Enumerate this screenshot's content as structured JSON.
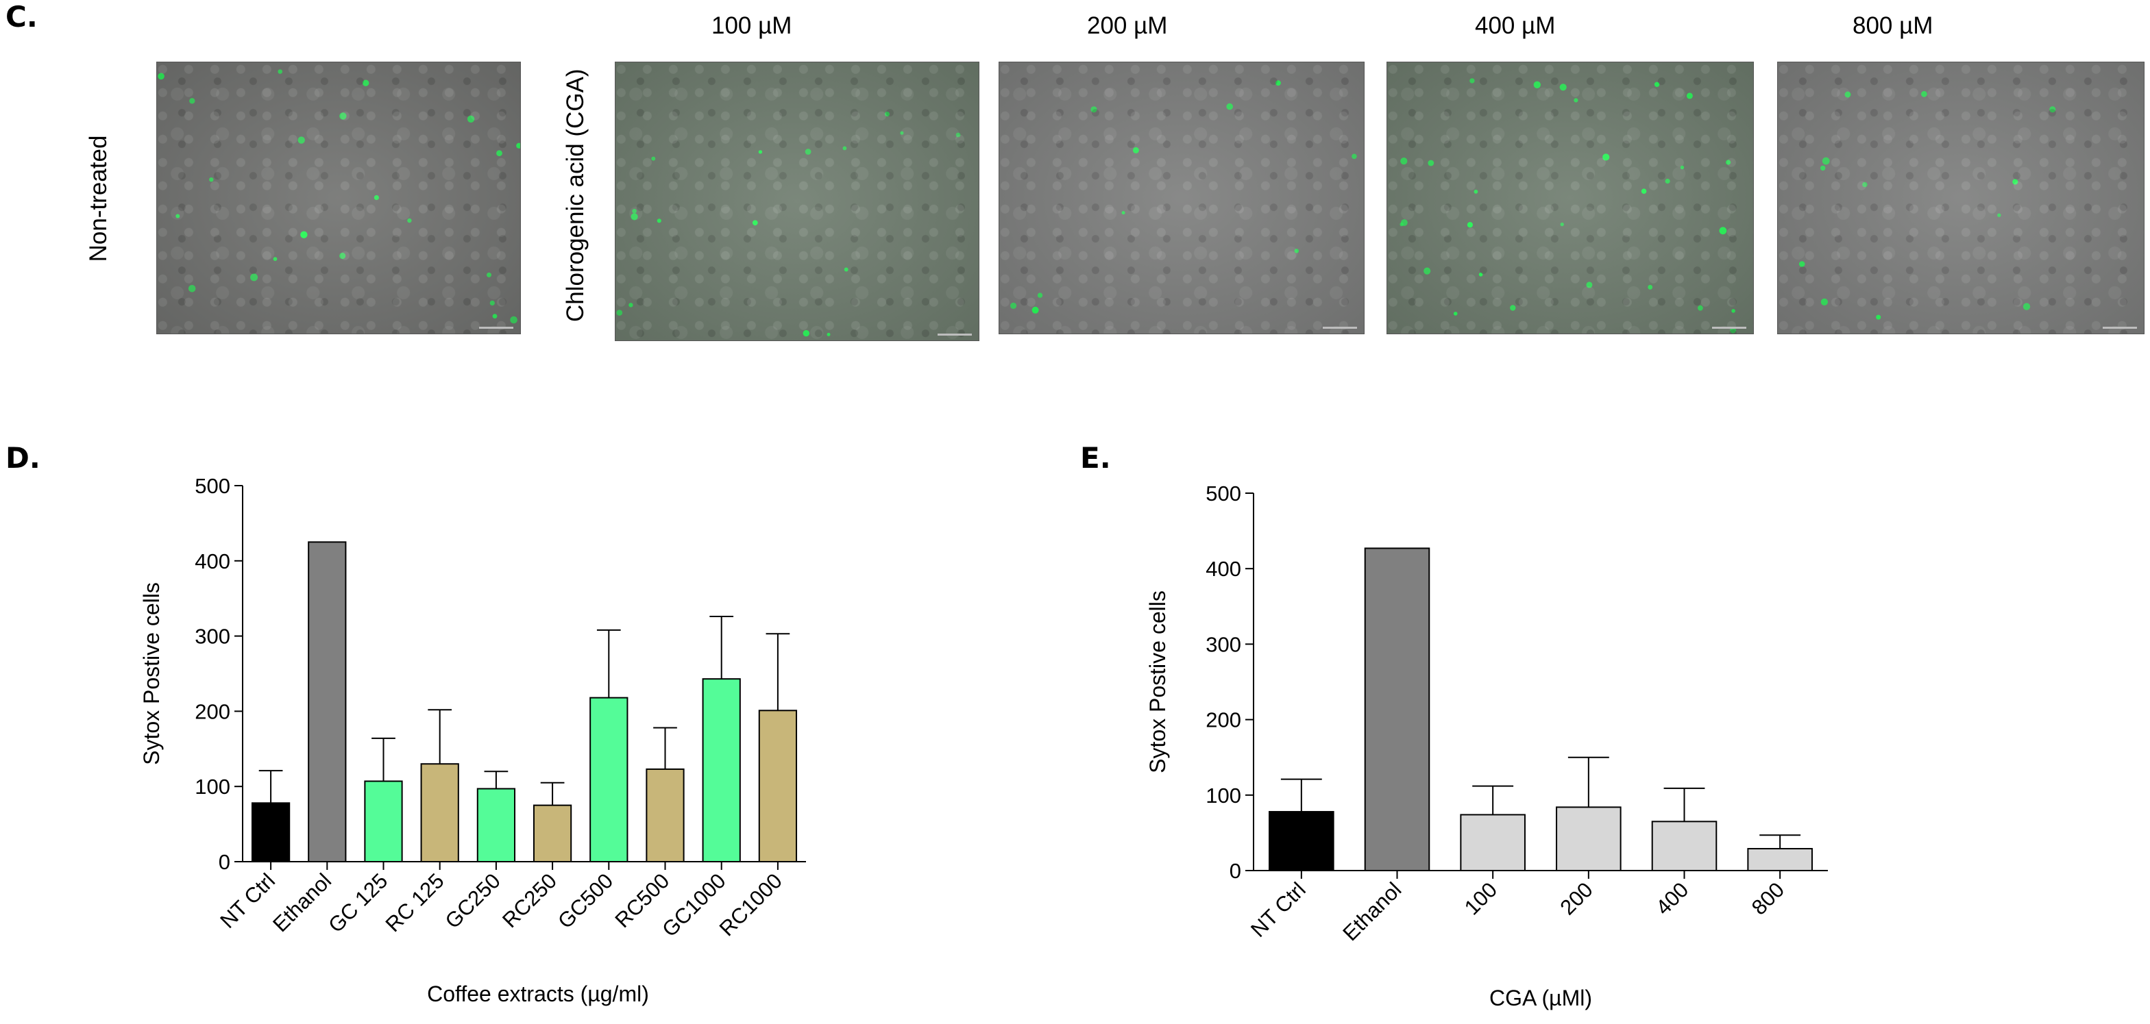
{
  "panel_c": {
    "letter": "C.",
    "row_label_untreated": "Non-treated",
    "row_label_cga": "Chlorogenic acid (CGA)",
    "concentrations": [
      "100 µM",
      "200 µM",
      "400 µM",
      "800 µM"
    ]
  },
  "chart_data": [
    {
      "type": "bar",
      "panel_letter": "D.",
      "title": "",
      "xlabel": "Coffee extracts (µg/ml)",
      "ylabel": "Sytox Postive cells",
      "ylim": [
        0,
        500
      ],
      "yticks": [
        0,
        100,
        200,
        300,
        400,
        500
      ],
      "categories": [
        "NT Ctrl",
        "Ethanol",
        "GC 125",
        "RC 125",
        "GC250",
        "RC250",
        "GC500",
        "RC500",
        "GC1000",
        "RC1000"
      ],
      "values": [
        78,
        425,
        107,
        130,
        97,
        75,
        218,
        123,
        243,
        201
      ],
      "errors": [
        43,
        0,
        57,
        72,
        23,
        30,
        90,
        55,
        83,
        102
      ],
      "colors": [
        "#000000",
        "#808080",
        "#54fc98",
        "#c8b679",
        "#54fc98",
        "#c8b679",
        "#54fc98",
        "#c8b679",
        "#54fc98",
        "#c8b679"
      ]
    },
    {
      "type": "bar",
      "panel_letter": "E.",
      "title": "",
      "xlabel": "CGA (µMl)",
      "ylabel": "Sytox Postive cells",
      "ylim": [
        0,
        500
      ],
      "yticks": [
        0,
        100,
        200,
        300,
        400,
        500
      ],
      "categories": [
        "NT Ctrl",
        "Ethanol",
        "100",
        "200",
        "400",
        "800"
      ],
      "values": [
        78,
        427,
        74,
        84,
        65,
        29
      ],
      "errors": [
        43,
        0,
        38,
        66,
        44,
        18
      ],
      "colors": [
        "#000000",
        "#808080",
        "#d7d7d7",
        "#d7d7d7",
        "#d7d7d7",
        "#d7d7d7"
      ]
    }
  ]
}
